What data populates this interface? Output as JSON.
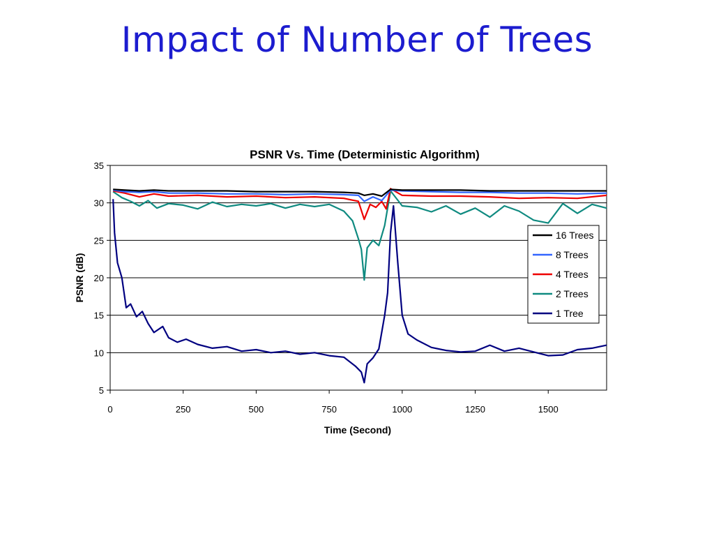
{
  "slide": {
    "title": "Impact of Number of Trees"
  },
  "chart_data": {
    "type": "line",
    "title": "PSNR Vs. Time (Deterministic Algorithm)",
    "xlabel": "Time (Second)",
    "ylabel": "PSNR (dB)",
    "xlim": [
      0,
      1700
    ],
    "ylim": [
      5,
      35
    ],
    "xticks": [
      0,
      250,
      500,
      750,
      1000,
      1250,
      1500
    ],
    "yticks": [
      5,
      10,
      15,
      20,
      25,
      30,
      35
    ],
    "grid": "horizontal",
    "legend_position": "right",
    "series": [
      {
        "name": "16 Trees",
        "color": "#000000",
        "x": [
          10,
          50,
          100,
          150,
          200,
          300,
          400,
          500,
          600,
          700,
          800,
          850,
          870,
          900,
          930,
          960,
          1000,
          1100,
          1200,
          1300,
          1400,
          1500,
          1600,
          1700
        ],
        "y": [
          31.8,
          31.7,
          31.6,
          31.7,
          31.6,
          31.6,
          31.6,
          31.5,
          31.5,
          31.5,
          31.4,
          31.3,
          31.0,
          31.2,
          30.9,
          31.8,
          31.7,
          31.7,
          31.7,
          31.6,
          31.6,
          31.6,
          31.6,
          31.6
        ]
      },
      {
        "name": "8 Trees",
        "color": "#3366ff",
        "x": [
          10,
          50,
          100,
          150,
          200,
          300,
          400,
          500,
          600,
          700,
          800,
          850,
          870,
          900,
          930,
          960,
          1000,
          1100,
          1200,
          1300,
          1400,
          1500,
          1600,
          1700
        ],
        "y": [
          31.7,
          31.5,
          31.4,
          31.5,
          31.3,
          31.3,
          31.2,
          31.2,
          31.1,
          31.2,
          31.1,
          31.0,
          30.2,
          30.8,
          30.3,
          31.7,
          31.6,
          31.5,
          31.4,
          31.4,
          31.3,
          31.3,
          31.2,
          31.3
        ]
      },
      {
        "name": "4 Trees",
        "color": "#ee0000",
        "x": [
          10,
          50,
          100,
          150,
          200,
          300,
          400,
          500,
          600,
          700,
          800,
          850,
          870,
          890,
          910,
          930,
          945,
          960,
          1000,
          1100,
          1200,
          1300,
          1400,
          1500,
          1600,
          1700
        ],
        "y": [
          31.6,
          31.3,
          30.8,
          31.2,
          30.9,
          31.0,
          30.8,
          30.9,
          30.7,
          30.8,
          30.6,
          30.2,
          27.8,
          29.8,
          29.4,
          30.2,
          29.2,
          31.9,
          31.0,
          30.9,
          30.9,
          30.8,
          30.6,
          30.7,
          30.6,
          31.0
        ]
      },
      {
        "name": "2 Trees",
        "color": "#0f8a80",
        "x": [
          10,
          40,
          70,
          100,
          130,
          160,
          200,
          250,
          300,
          350,
          400,
          450,
          500,
          550,
          600,
          650,
          700,
          750,
          800,
          830,
          850,
          860,
          870,
          880,
          900,
          920,
          940,
          960,
          1000,
          1050,
          1100,
          1150,
          1200,
          1250,
          1300,
          1350,
          1400,
          1450,
          1500,
          1550,
          1600,
          1650,
          1700
        ],
        "y": [
          31.5,
          30.7,
          30.2,
          29.6,
          30.3,
          29.3,
          29.9,
          29.7,
          29.2,
          30.1,
          29.5,
          29.8,
          29.6,
          29.9,
          29.3,
          29.8,
          29.5,
          29.8,
          28.9,
          27.6,
          25.2,
          23.8,
          19.7,
          24.0,
          25.0,
          24.3,
          27.0,
          31.6,
          29.6,
          29.4,
          28.8,
          29.6,
          28.5,
          29.3,
          28.1,
          29.6,
          28.9,
          27.7,
          27.3,
          29.9,
          28.6,
          29.8,
          29.3
        ]
      },
      {
        "name": "1 Tree",
        "color": "#000080",
        "x": [
          10,
          15,
          25,
          40,
          55,
          70,
          90,
          110,
          130,
          150,
          180,
          200,
          230,
          260,
          300,
          350,
          400,
          450,
          500,
          550,
          600,
          650,
          700,
          750,
          800,
          840,
          860,
          870,
          880,
          900,
          920,
          940,
          950,
          960,
          970,
          985,
          1000,
          1020,
          1050,
          1100,
          1150,
          1200,
          1250,
          1300,
          1350,
          1400,
          1450,
          1500,
          1550,
          1600,
          1650,
          1700
        ],
        "y": [
          30.5,
          26.0,
          22.0,
          20.0,
          16.0,
          16.5,
          14.8,
          15.5,
          13.9,
          12.7,
          13.5,
          12.0,
          11.4,
          11.8,
          11.1,
          10.6,
          10.8,
          10.2,
          10.4,
          10.0,
          10.2,
          9.8,
          10.0,
          9.6,
          9.4,
          8.2,
          7.4,
          6.0,
          8.5,
          9.3,
          10.5,
          15.0,
          18.0,
          26.0,
          29.6,
          22.0,
          15.0,
          12.5,
          11.7,
          10.7,
          10.3,
          10.1,
          10.2,
          11.0,
          10.2,
          10.6,
          10.1,
          9.6,
          9.7,
          10.4,
          10.6,
          11.0
        ]
      }
    ]
  }
}
